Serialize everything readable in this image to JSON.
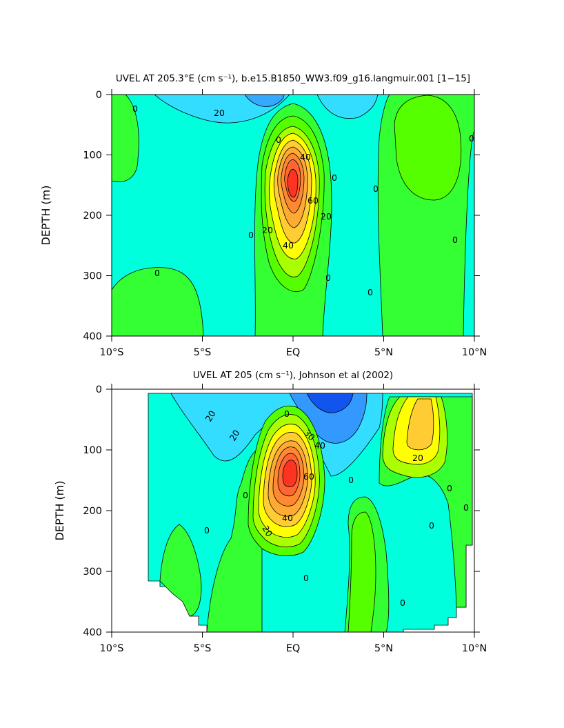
{
  "chart_data": [
    {
      "type": "contour",
      "title": "UVEL AT 205.3°E (cm s⁻¹), b.e15.B1850_WW3.f09_g16.langmuir.001 [1−15]",
      "ylabel": "DEPTH (m)",
      "xlabel": "",
      "xlim": [
        -10,
        10
      ],
      "ylim": [
        400,
        0
      ],
      "x_ticks": [
        "10°S",
        "5°S",
        "EQ",
        "5°N",
        "10°N"
      ],
      "y_ticks": [
        "0",
        "100",
        "200",
        "300",
        "400"
      ],
      "contour_interval": 10,
      "contour_labels": [
        "0",
        "20",
        "0",
        "40",
        "0",
        "0",
        "60",
        "20",
        "0",
        "20",
        "40",
        "0",
        "0",
        "0",
        "0",
        "0"
      ],
      "core": {
        "lat": 0,
        "depth": 155,
        "max_speed": 80
      },
      "fill_colors": [
        "#3399ff",
        "#33ddff",
        "#00ffdd",
        "#33ff33",
        "#55ff00",
        "#aaff00",
        "#ffff00",
        "#ffcc33",
        "#ffaa33",
        "#ff8833",
        "#ff6633",
        "#ff3322"
      ]
    },
    {
      "type": "contour",
      "title": "UVEL AT 205 (cm s⁻¹), Johnson et al (2002)",
      "ylabel": "DEPTH (m)",
      "xlabel": "",
      "xlim": [
        -10,
        10
      ],
      "ylim": [
        400,
        0
      ],
      "x_ticks": [
        "10°S",
        "5°S",
        "EQ",
        "5°N",
        "10°N"
      ],
      "y_ticks": [
        "0",
        "100",
        "200",
        "300",
        "400"
      ],
      "contour_interval": 10,
      "contour_labels": [
        "20",
        "20",
        "0",
        "30",
        "40",
        "60",
        "0",
        "40",
        "20",
        "0",
        "20",
        "0",
        "0",
        "0",
        "0",
        "0",
        "0"
      ],
      "core": {
        "lat": 0,
        "depth": 130,
        "max_speed": 90
      },
      "fill_colors": [
        "#1155ee",
        "#3399ff",
        "#33ddff",
        "#00ffdd",
        "#33ff33",
        "#55ff00",
        "#aaff00",
        "#ffff00",
        "#ffcc33",
        "#ffaa33",
        "#ff8833",
        "#ff6633",
        "#ff3322"
      ]
    }
  ]
}
